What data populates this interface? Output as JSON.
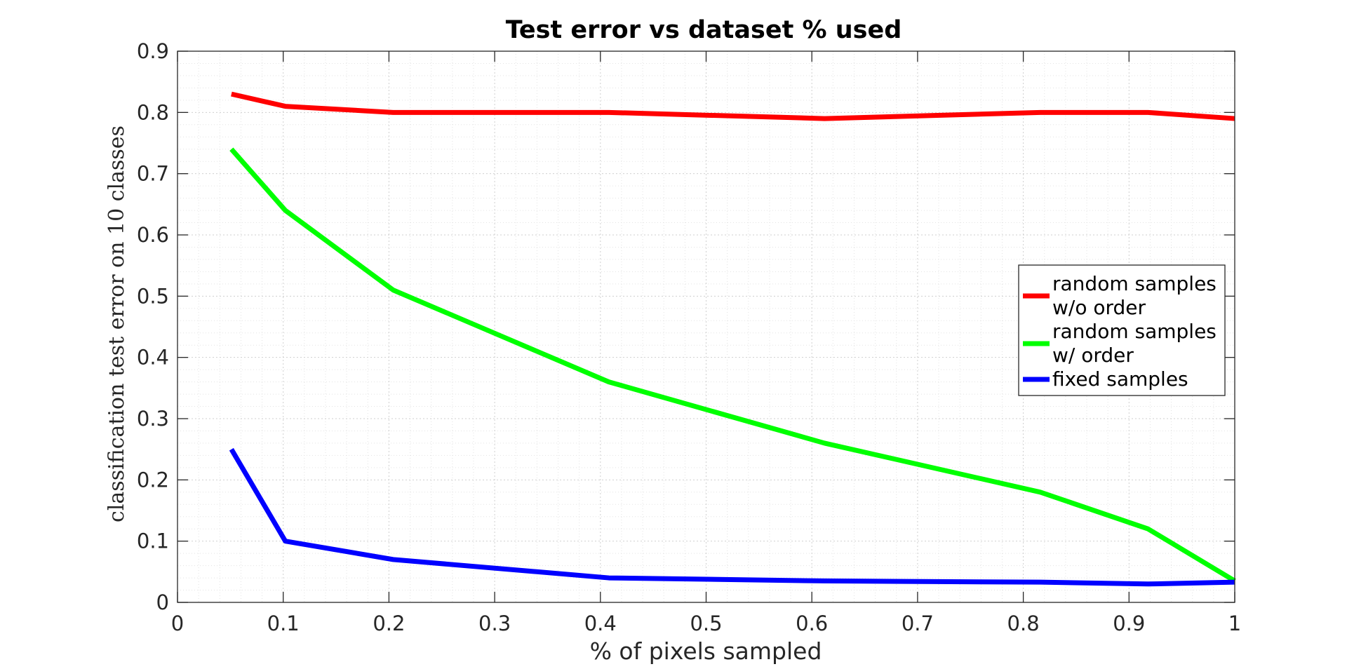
{
  "chart_data": {
    "type": "line",
    "title": "Test error vs dataset % used",
    "xlabel": "% of pixels sampled",
    "ylabel": "classification test error on 10 classes",
    "xlim": [
      0,
      1
    ],
    "ylim": [
      0,
      0.9
    ],
    "x_ticks": [
      0,
      0.1,
      0.2,
      0.3,
      0.4,
      0.5,
      0.6,
      0.7,
      0.8,
      0.9,
      1
    ],
    "x_tick_labels": [
      "0",
      "0.1",
      "0.2",
      "0.3",
      "0.4",
      "0.5",
      "0.6",
      "0.7",
      "0.8",
      "0.9",
      "1"
    ],
    "y_ticks": [
      0,
      0.1,
      0.2,
      0.3,
      0.4,
      0.5,
      0.6,
      0.7,
      0.8,
      0.9
    ],
    "y_tick_labels": [
      "0",
      "0.1",
      "0.2",
      "0.3",
      "0.4",
      "0.5",
      "0.6",
      "0.7",
      "0.8",
      "0.9"
    ],
    "grid": true,
    "minor_grid": true,
    "legend_position": "right",
    "x": [
      0.051,
      0.102,
      0.204,
      0.408,
      0.612,
      0.816,
      0.918,
      1.0
    ],
    "series": [
      {
        "name_lines": [
          "random samples",
          "w/o order"
        ],
        "color": "#ff0000",
        "values": [
          0.83,
          0.81,
          0.8,
          0.8,
          0.79,
          0.8,
          0.8,
          0.79
        ]
      },
      {
        "name_lines": [
          "random samples",
          "w/ order"
        ],
        "color": "#00ff00",
        "values": [
          0.74,
          0.64,
          0.51,
          0.36,
          0.26,
          0.18,
          0.12,
          0.035
        ]
      },
      {
        "name_lines": [
          "fixed samples"
        ],
        "color": "#0000ff",
        "values": [
          0.25,
          0.1,
          0.07,
          0.04,
          0.035,
          0.033,
          0.03,
          0.033
        ]
      }
    ]
  }
}
